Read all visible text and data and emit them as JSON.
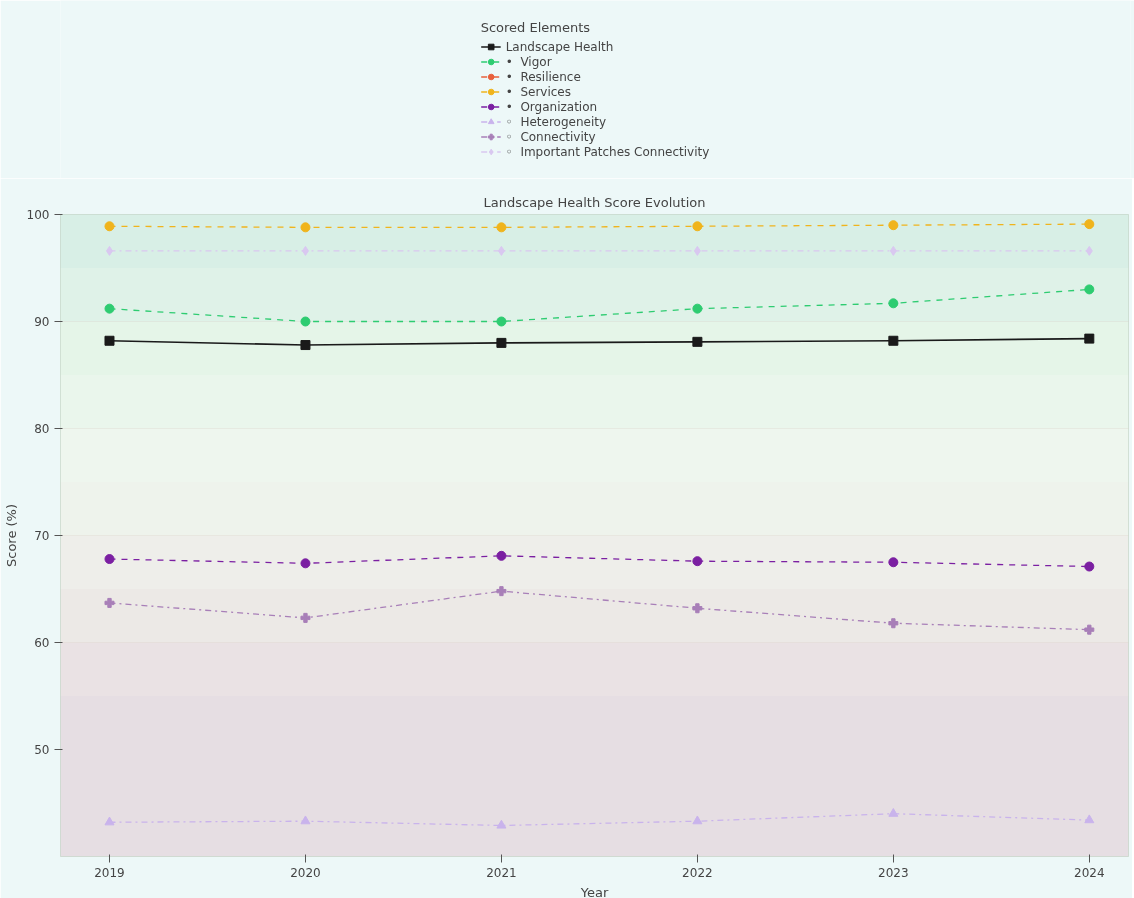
{
  "chart_data": {
    "type": "line",
    "title": "Landscape Health Score Evolution",
    "xlabel": "Year",
    "ylabel": "Score (%)",
    "legend_title": "Scored Elements",
    "legend": "top",
    "grid": true,
    "x": [
      2019,
      2020,
      2021,
      2022,
      2023,
      2024
    ],
    "xlim": [
      2018.75,
      2024.2
    ],
    "xticks": [
      2019,
      2020,
      2021,
      2022,
      2023,
      2024
    ],
    "ylim": [
      40,
      100
    ],
    "yticks": [
      50,
      60,
      70,
      80,
      90,
      100
    ],
    "bands": [
      {
        "axis": "y",
        "from": 40,
        "to": 55,
        "color": "#e6dee3"
      },
      {
        "axis": "y",
        "from": 55,
        "to": 60,
        "color": "#eae2e4"
      },
      {
        "axis": "y",
        "from": 60,
        "to": 65,
        "color": "#ece9e6"
      },
      {
        "axis": "y",
        "from": 65,
        "to": 70,
        "color": "#eeeeea"
      },
      {
        "axis": "y",
        "from": 70,
        "to": 75,
        "color": "#eef3ec"
      },
      {
        "axis": "y",
        "from": 75,
        "to": 80,
        "color": "#eef6ee"
      },
      {
        "axis": "y",
        "from": 80,
        "to": 85,
        "color": "#eaf6ec"
      },
      {
        "axis": "y",
        "from": 85,
        "to": 90,
        "color": "#e5f5e8"
      },
      {
        "axis": "y",
        "from": 90,
        "to": 95,
        "color": "#dff2e8"
      },
      {
        "axis": "y",
        "from": 95,
        "to": 100,
        "color": "#d8efe6"
      }
    ],
    "series": [
      {
        "name": "Landscape Health",
        "color": "#1a1a1a",
        "marker": "square",
        "line_style": "solid",
        "values": [
          88.2,
          87.8,
          88.0,
          88.1,
          88.2,
          88.4
        ]
      },
      {
        "name": "•  Vigor",
        "color": "#2ecc71",
        "marker": "circle",
        "line_style": "dashed",
        "values": [
          91.2,
          90.0,
          90.0,
          91.2,
          91.7,
          93.0
        ]
      },
      {
        "name": "•  Resilience",
        "color": "#e8603c",
        "marker": "circle",
        "line_style": "dashed",
        "values": [
          null,
          null,
          null,
          null,
          null,
          null
        ]
      },
      {
        "name": "•  Services",
        "color": "#f0b41c",
        "marker": "circle",
        "line_style": "dashed",
        "values": [
          98.9,
          98.8,
          98.8,
          98.9,
          99.0,
          99.1
        ]
      },
      {
        "name": "•  Organization",
        "color": "#7b1fa2",
        "marker": "circle",
        "line_style": "dashed",
        "values": [
          67.8,
          67.4,
          68.1,
          67.6,
          67.5,
          67.1
        ]
      },
      {
        "name": "◦  Heterogeneity",
        "color": "#c9b3ec",
        "marker": "triangle",
        "line_style": "dashdot",
        "values": [
          43.2,
          43.3,
          42.9,
          43.3,
          44.0,
          43.4
        ]
      },
      {
        "name": "◦  Connectivity",
        "color": "#a87fb8",
        "marker": "cross",
        "line_style": "dashdot",
        "values": [
          63.7,
          62.3,
          64.8,
          63.2,
          61.8,
          61.2
        ]
      },
      {
        "name": "◦  Important Patches Connectivity",
        "color": "#d9c8f0",
        "marker": "diamond",
        "line_style": "dashdot",
        "values": [
          96.6,
          96.6,
          96.6,
          96.6,
          96.6,
          96.6
        ]
      }
    ]
  }
}
